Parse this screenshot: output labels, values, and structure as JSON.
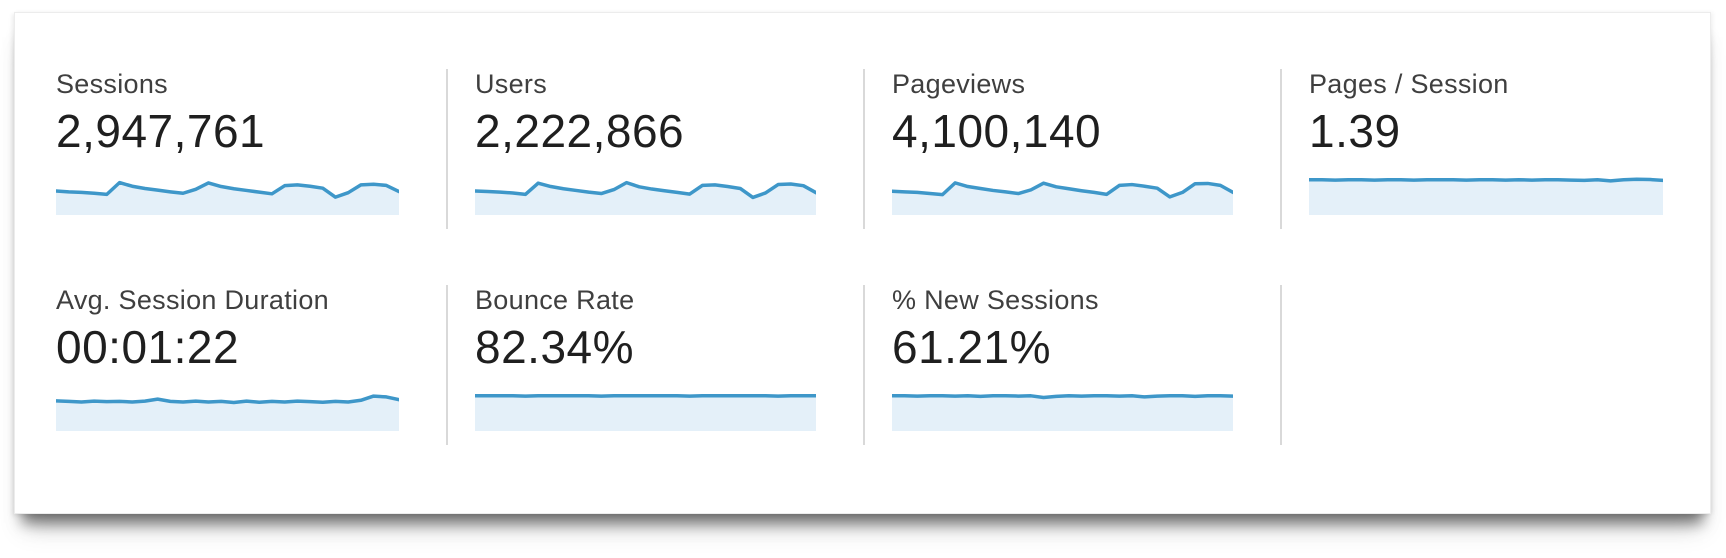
{
  "colors": {
    "spark_line": "#3e97c9",
    "spark_fill": "#e4f0f9",
    "divider": "#d9d9d9",
    "label_text": "#3f3f3f",
    "value_text": "#1f1f1f",
    "panel_bg": "#ffffff"
  },
  "metrics": [
    {
      "id": "sessions",
      "label": "Sessions",
      "value": "2,947,761",
      "sparkline": [
        0.5,
        0.53,
        0.55,
        0.58,
        0.62,
        0.2,
        0.33,
        0.41,
        0.47,
        0.53,
        0.58,
        0.44,
        0.21,
        0.34,
        0.42,
        0.48,
        0.54,
        0.6,
        0.31,
        0.28,
        0.33,
        0.4,
        0.72,
        0.56,
        0.28,
        0.26,
        0.3,
        0.52
      ]
    },
    {
      "id": "users",
      "label": "Users",
      "value": "2,222,866",
      "sparkline": [
        0.5,
        0.52,
        0.54,
        0.57,
        0.62,
        0.22,
        0.34,
        0.42,
        0.48,
        0.54,
        0.59,
        0.45,
        0.2,
        0.35,
        0.43,
        0.49,
        0.55,
        0.61,
        0.3,
        0.28,
        0.34,
        0.41,
        0.73,
        0.57,
        0.27,
        0.25,
        0.31,
        0.56
      ]
    },
    {
      "id": "pageviews",
      "label": "Pageviews",
      "value": "4,100,140",
      "sparkline": [
        0.51,
        0.53,
        0.55,
        0.59,
        0.63,
        0.21,
        0.34,
        0.41,
        0.48,
        0.53,
        0.59,
        0.46,
        0.22,
        0.35,
        0.42,
        0.49,
        0.55,
        0.62,
        0.3,
        0.27,
        0.33,
        0.4,
        0.71,
        0.55,
        0.24,
        0.23,
        0.3,
        0.55
      ]
    },
    {
      "id": "pages-per-session",
      "label": "Pages / Session",
      "value": "1.39",
      "sparkline": [
        0.1,
        0.1,
        0.11,
        0.1,
        0.1,
        0.11,
        0.1,
        0.1,
        0.11,
        0.1,
        0.1,
        0.1,
        0.11,
        0.1,
        0.1,
        0.11,
        0.1,
        0.11,
        0.1,
        0.1,
        0.11,
        0.12,
        0.1,
        0.14,
        0.1,
        0.08,
        0.09,
        0.12
      ]
    },
    {
      "id": "avg-session-duration",
      "label": "Avg. Session Duration",
      "value": "00:01:22",
      "sparkline": [
        0.28,
        0.3,
        0.32,
        0.29,
        0.31,
        0.3,
        0.32,
        0.29,
        0.22,
        0.3,
        0.32,
        0.29,
        0.32,
        0.3,
        0.34,
        0.29,
        0.33,
        0.3,
        0.32,
        0.29,
        0.31,
        0.33,
        0.3,
        0.32,
        0.26,
        0.11,
        0.14,
        0.24
      ]
    },
    {
      "id": "bounce-rate",
      "label": "Bounce Rate",
      "value": "82.34%",
      "sparkline": [
        0.1,
        0.1,
        0.1,
        0.1,
        0.11,
        0.1,
        0.1,
        0.1,
        0.1,
        0.1,
        0.11,
        0.1,
        0.1,
        0.1,
        0.1,
        0.1,
        0.1,
        0.11,
        0.1,
        0.1,
        0.1,
        0.1,
        0.1,
        0.1,
        0.11,
        0.1,
        0.1,
        0.1
      ]
    },
    {
      "id": "new-sessions",
      "label": "% New Sessions",
      "value": "61.21%",
      "sparkline": [
        0.1,
        0.1,
        0.11,
        0.1,
        0.1,
        0.11,
        0.1,
        0.12,
        0.1,
        0.1,
        0.11,
        0.1,
        0.16,
        0.12,
        0.1,
        0.11,
        0.1,
        0.1,
        0.11,
        0.1,
        0.14,
        0.11,
        0.1,
        0.1,
        0.12,
        0.1,
        0.1,
        0.11
      ]
    }
  ]
}
